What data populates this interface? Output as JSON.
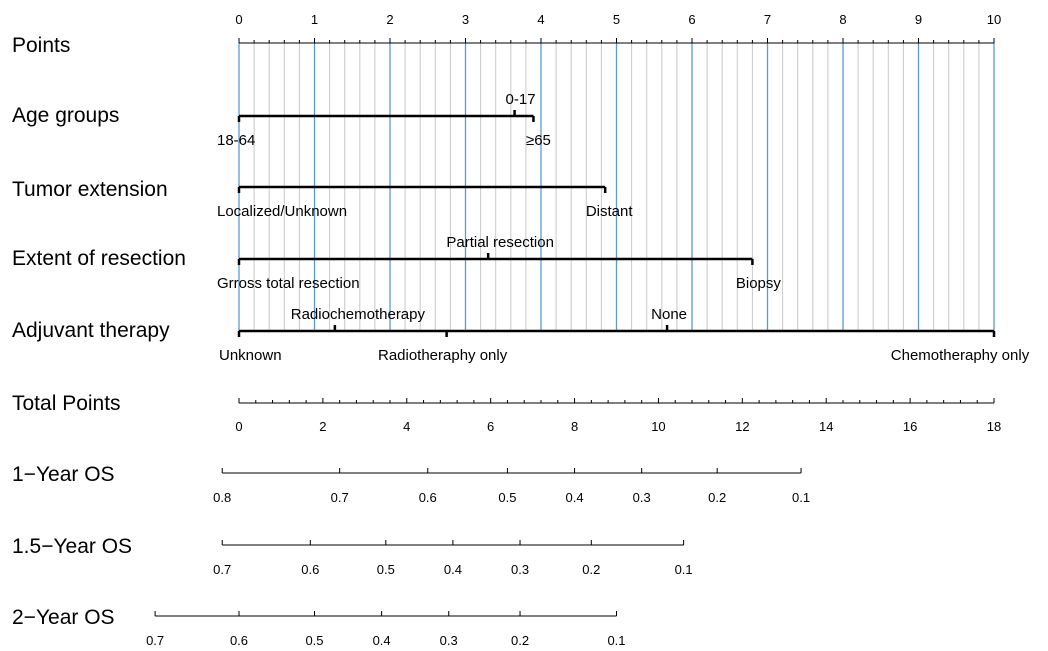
{
  "chart_data": {
    "type": "nomogram",
    "grid": true,
    "rows": [
      {
        "label": "Points",
        "kind": "scale",
        "range": [
          0,
          10
        ],
        "major_ticks": [
          0,
          1,
          2,
          3,
          4,
          5,
          6,
          7,
          8,
          9,
          10
        ],
        "minor_step": 0.2,
        "tick_labels": [
          "0",
          "1",
          "2",
          "3",
          "4",
          "5",
          "6",
          "7",
          "8",
          "9",
          "10"
        ]
      },
      {
        "label": "Age groups",
        "kind": "variable",
        "levels": [
          {
            "name": "18-64",
            "points": 0
          },
          {
            "name": "0-17",
            "points": 3.65
          },
          {
            "name": "≥65",
            "points": 3.9
          }
        ]
      },
      {
        "label": "Tumor extension",
        "kind": "variable",
        "levels": [
          {
            "name": "Localized/Unknown",
            "points": 0
          },
          {
            "name": "Distant",
            "points": 4.85
          }
        ]
      },
      {
        "label": "Extent of resection",
        "kind": "variable",
        "levels": [
          {
            "name": "Grross total resection",
            "points": 0
          },
          {
            "name": "Partial resection",
            "points": 3.3
          },
          {
            "name": "Biopsy",
            "points": 6.8
          }
        ]
      },
      {
        "label": "Adjuvant therapy",
        "kind": "variable",
        "levels": [
          {
            "name": "Unknown",
            "points": 0
          },
          {
            "name": "Radiochemotherapy",
            "points": 1.27
          },
          {
            "name": "Radiotheraphy only",
            "points": 2.75
          },
          {
            "name": "None",
            "points": 5.67
          },
          {
            "name": "Chemotheraphy only",
            "points": 10
          }
        ]
      },
      {
        "label": "Total Points",
        "kind": "scale",
        "range": [
          0,
          18
        ],
        "major_ticks": [
          0,
          2,
          4,
          6,
          8,
          10,
          12,
          14,
          16,
          18
        ],
        "minor_step": 0.4,
        "tick_labels": [
          "0",
          "2",
          "4",
          "6",
          "8",
          "10",
          "12",
          "14",
          "16",
          "18"
        ]
      },
      {
        "label": "1−Year OS",
        "kind": "probability",
        "ticks": [
          {
            "label": "0.8",
            "total_points": -0.4
          },
          {
            "label": "0.7",
            "total_points": 2.4
          },
          {
            "label": "0.6",
            "total_points": 4.5
          },
          {
            "label": "0.5",
            "total_points": 6.4
          },
          {
            "label": "0.4",
            "total_points": 8.0
          },
          {
            "label": "0.3",
            "total_points": 9.6
          },
          {
            "label": "0.2",
            "total_points": 11.4
          },
          {
            "label": "0.1",
            "total_points": 13.4
          }
        ]
      },
      {
        "label": "1.5−Year OS",
        "kind": "probability",
        "ticks": [
          {
            "label": "0.7",
            "total_points": -0.4
          },
          {
            "label": "0.6",
            "total_points": 1.7
          },
          {
            "label": "0.5",
            "total_points": 3.5
          },
          {
            "label": "0.4",
            "total_points": 5.1
          },
          {
            "label": "0.3",
            "total_points": 6.7
          },
          {
            "label": "0.2",
            "total_points": 8.4
          },
          {
            "label": "0.1",
            "total_points": 10.6
          }
        ]
      },
      {
        "label": "2−Year OS",
        "kind": "probability",
        "ticks": [
          {
            "label": "0.7",
            "total_points": -2.0
          },
          {
            "label": "0.6",
            "total_points": 0.0
          },
          {
            "label": "0.5",
            "total_points": 1.8
          },
          {
            "label": "0.4",
            "total_points": 3.4
          },
          {
            "label": "0.3",
            "total_points": 5.0
          },
          {
            "label": "0.2",
            "total_points": 6.7
          },
          {
            "label": "0.1",
            "total_points": 9.0
          }
        ]
      }
    ],
    "colors": {
      "major_grid": "#5b9bd5",
      "minor_grid": "#c8c8c8",
      "lines": "#000000"
    }
  }
}
